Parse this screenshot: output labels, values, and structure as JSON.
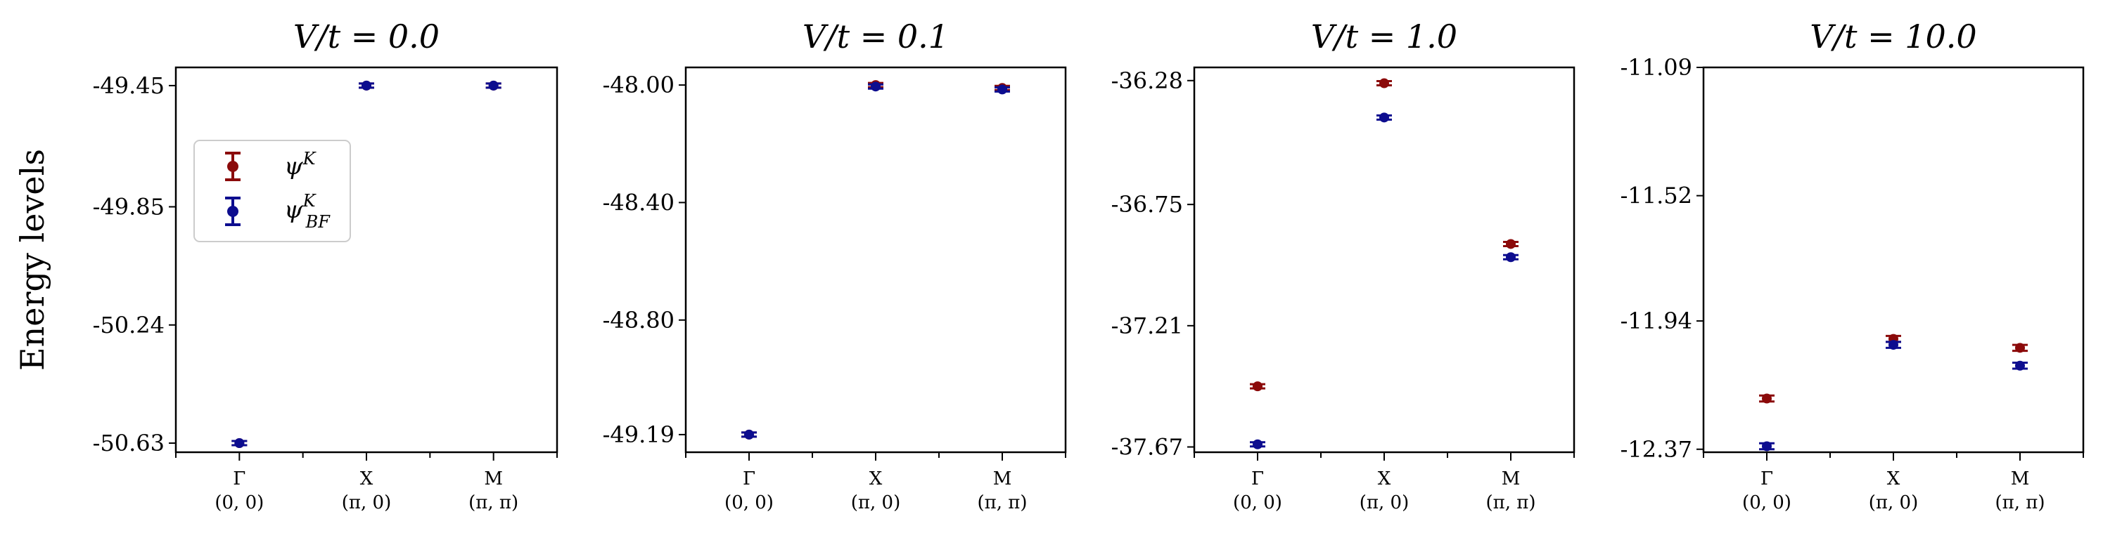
{
  "figure": {
    "ylabel": "Energy levels"
  },
  "legend": {
    "entries": [
      {
        "label": "ψ",
        "sup": "K",
        "sub": "",
        "color": "#8b0a0a"
      },
      {
        "label": "ψ",
        "sup": "K",
        "sub": "BF",
        "color": "#0d0d8f"
      }
    ]
  },
  "chart_data": [
    {
      "type": "scatter",
      "title": "V/t = 0.0",
      "categories": [
        "Γ",
        "X",
        "M"
      ],
      "category_coords": [
        "(0, 0)",
        "(π, 0)",
        "(π, π)"
      ],
      "yticks": [
        "-49.45",
        "-49.85",
        "-50.24",
        "-50.63"
      ],
      "ylim": [
        -50.66,
        -49.39
      ],
      "series": [
        {
          "name": "ψ^K",
          "values": [
            -50.63,
            -49.45,
            -49.45
          ],
          "errors": [
            0.004,
            0.004,
            0.004
          ]
        },
        {
          "name": "ψ_BF^K",
          "values": [
            -50.63,
            -49.45,
            -49.45
          ],
          "errors": [
            0.004,
            0.004,
            0.004
          ]
        }
      ]
    },
    {
      "type": "scatter",
      "title": "V/t = 0.1",
      "categories": [
        "Γ",
        "X",
        "M"
      ],
      "category_coords": [
        "(0, 0)",
        "(π, 0)",
        "(π, π)"
      ],
      "yticks": [
        "-48.00",
        "-48.40",
        "-48.80",
        "-49.19"
      ],
      "ylim": [
        -49.25,
        -47.94
      ],
      "series": [
        {
          "name": "ψ^K",
          "values": [
            -49.19,
            -48.0,
            -48.01
          ],
          "errors": [
            0.004,
            0.004,
            0.004
          ]
        },
        {
          "name": "ψ_BF^K",
          "values": [
            -49.19,
            -48.005,
            -48.015
          ],
          "errors": [
            0.004,
            0.004,
            0.004
          ]
        }
      ]
    },
    {
      "type": "scatter",
      "title": "V/t = 1.0",
      "categories": [
        "Γ",
        "X",
        "M"
      ],
      "category_coords": [
        "(0, 0)",
        "(π, 0)",
        "(π, π)"
      ],
      "yticks": [
        "-36.28",
        "-36.75",
        "-37.21",
        "-37.67"
      ],
      "ylim": [
        -37.69,
        -36.23
      ],
      "series": [
        {
          "name": "ψ^K",
          "values": [
            -37.44,
            -36.29,
            -36.9
          ],
          "errors": [
            0.006,
            0.006,
            0.006
          ]
        },
        {
          "name": "ψ_BF^K",
          "values": [
            -37.66,
            -36.42,
            -36.95
          ],
          "errors": [
            0.006,
            0.006,
            0.006
          ]
        }
      ]
    },
    {
      "type": "scatter",
      "title": "V/t = 10.0",
      "categories": [
        "Γ",
        "X",
        "M"
      ],
      "category_coords": [
        "(0, 0)",
        "(π, 0)",
        "(π, π)"
      ],
      "yticks": [
        "-11.09",
        "-11.52",
        "-11.94",
        "-12.37"
      ],
      "ylim": [
        -12.38,
        -11.09
      ],
      "series": [
        {
          "name": "ψ^K",
          "values": [
            -12.2,
            -12.0,
            -12.03
          ],
          "errors": [
            0.01,
            0.01,
            0.01
          ]
        },
        {
          "name": "ψ_BF^K",
          "values": [
            -12.36,
            -12.02,
            -12.09
          ],
          "errors": [
            0.01,
            0.01,
            0.01
          ]
        }
      ]
    }
  ]
}
